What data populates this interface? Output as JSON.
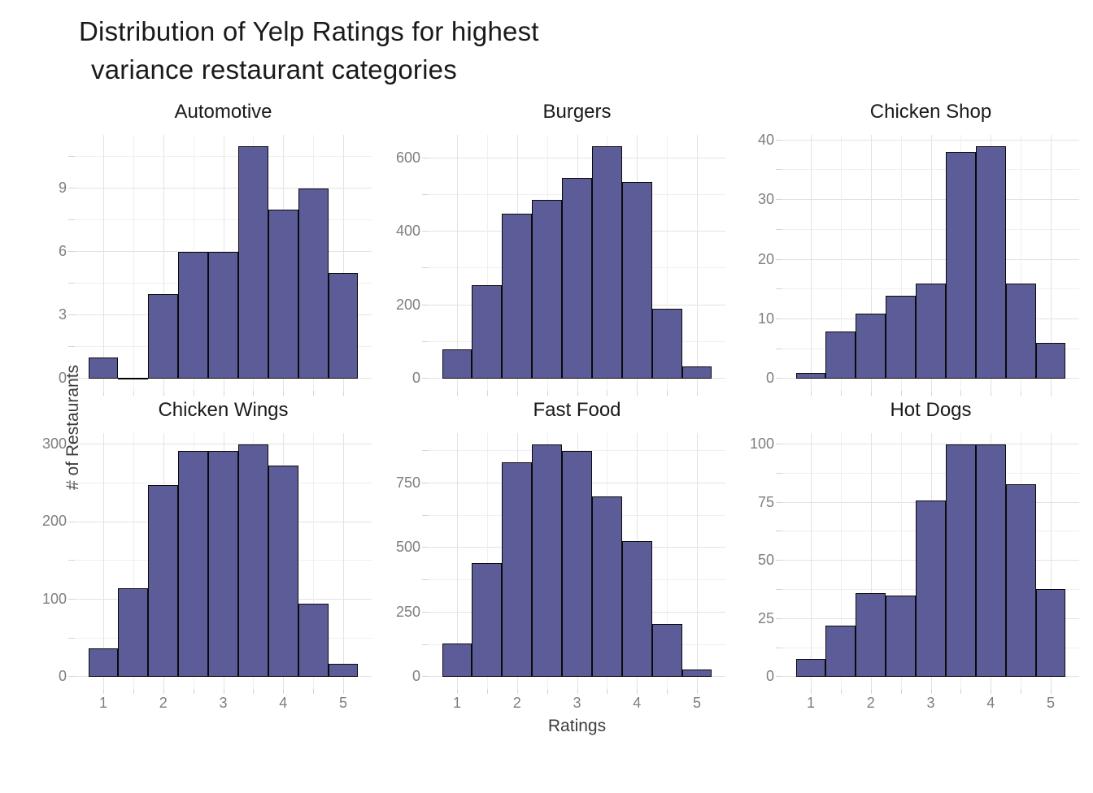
{
  "title": {
    "line1": "Distribution of Yelp Ratings for highest",
    "line2": "variance restaurant categories"
  },
  "axes": {
    "x_label": "Ratings",
    "y_label": "# of Restaurants",
    "x_ticks": [
      1,
      2,
      3,
      4,
      5
    ],
    "x_minor_ticks": [
      1.5,
      2.5,
      3.5,
      4.5
    ],
    "x_domain": [
      0.525,
      5.475
    ],
    "grid": "on",
    "facet_layout": "2 rows x 3 columns, free y scales"
  },
  "style": {
    "bar_fill": "#5C5C99",
    "bar_stroke": "#0A0A0A",
    "zero_bin_line": "#000000",
    "grid_major": "#E3E3E3",
    "grid_minor": "#EFEFEF",
    "tick_mark": "#D4D4D4",
    "tick_label_color": "#7E7E7E",
    "text_color": "#1A1A1A",
    "background": "#FFFFFF"
  },
  "chart_data": [
    {
      "type": "bar",
      "subtype": "histogram",
      "title": "Automotive",
      "bin_centers": [
        1,
        1.5,
        2,
        2.5,
        3,
        3.5,
        4,
        4.5,
        5
      ],
      "bin_width": 0.5,
      "counts": [
        1,
        0,
        4,
        6,
        6,
        11,
        8,
        9,
        5
      ],
      "y_ticks": [
        0,
        3,
        6,
        9
      ]
    },
    {
      "type": "bar",
      "subtype": "histogram",
      "title": "Burgers",
      "bin_centers": [
        1,
        1.5,
        2,
        2.5,
        3,
        3.5,
        4,
        4.5,
        5
      ],
      "bin_width": 0.5,
      "counts": [
        80,
        255,
        450,
        487,
        545,
        632,
        535,
        190,
        35
      ],
      "y_ticks": [
        0,
        200,
        400,
        600
      ]
    },
    {
      "type": "bar",
      "subtype": "histogram",
      "title": "Chicken Shop",
      "bin_centers": [
        1,
        1.5,
        2,
        2.5,
        3,
        3.5,
        4,
        4.5,
        5
      ],
      "bin_width": 0.5,
      "counts": [
        1,
        8,
        11,
        14,
        16,
        38,
        39,
        16,
        6
      ],
      "y_ticks": [
        0,
        10,
        20,
        30,
        40
      ]
    },
    {
      "type": "bar",
      "subtype": "histogram",
      "title": "Chicken Wings",
      "bin_centers": [
        1,
        1.5,
        2,
        2.5,
        3,
        3.5,
        4,
        4.5,
        5
      ],
      "bin_width": 0.5,
      "counts": [
        37,
        115,
        248,
        292,
        292,
        300,
        273,
        95,
        17
      ],
      "y_ticks": [
        0,
        100,
        200,
        300
      ]
    },
    {
      "type": "bar",
      "subtype": "histogram",
      "title": "Fast Food",
      "bin_centers": [
        1,
        1.5,
        2,
        2.5,
        3,
        3.5,
        4,
        4.5,
        5
      ],
      "bin_width": 0.5,
      "counts": [
        130,
        440,
        830,
        900,
        875,
        700,
        525,
        205,
        30
      ],
      "y_ticks": [
        0,
        250,
        500,
        750
      ]
    },
    {
      "type": "bar",
      "subtype": "histogram",
      "title": "Hot Dogs",
      "bin_centers": [
        1,
        1.5,
        2,
        2.5,
        3,
        3.5,
        4,
        4.5,
        5
      ],
      "bin_width": 0.5,
      "counts": [
        8,
        22,
        36,
        35,
        76,
        100,
        100,
        83,
        38
      ],
      "y_ticks": [
        0,
        25,
        50,
        75,
        100
      ]
    }
  ]
}
